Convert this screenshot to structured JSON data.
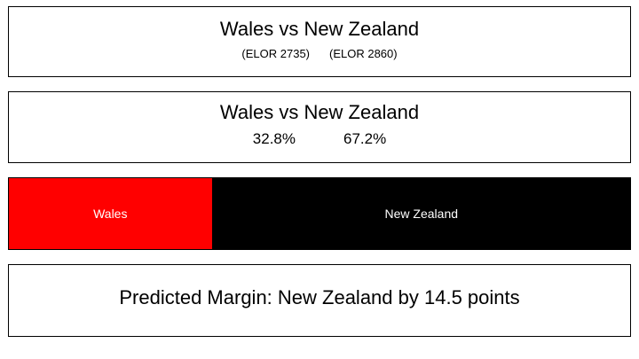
{
  "matchup_title": "Wales vs New Zealand",
  "teams": [
    {
      "name": "Wales",
      "rating_label": "(ELOR 2735)",
      "win_probability": "32.8%",
      "win_fraction": 0.328,
      "color": "#ff0000"
    },
    {
      "name": "New Zealand",
      "rating_label": "(ELOR 2860)",
      "win_probability": "67.2%",
      "win_fraction": 0.672,
      "color": "#000000"
    }
  ],
  "prediction": "Predicted Margin: New Zealand by 14.5 points"
}
